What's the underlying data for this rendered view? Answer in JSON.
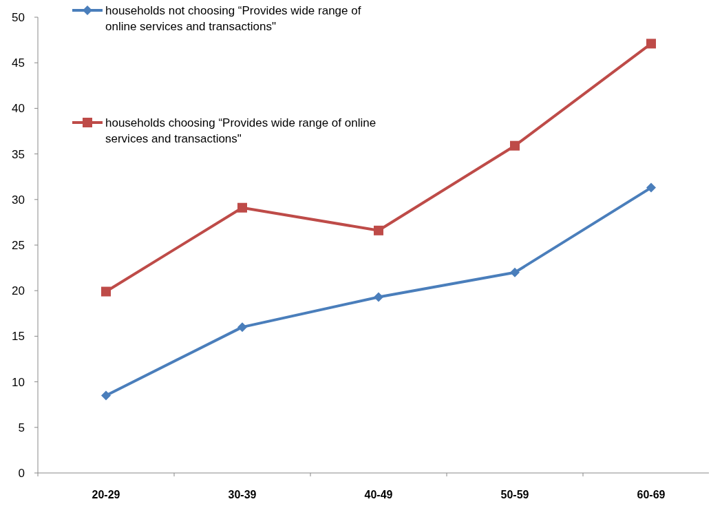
{
  "chart_data": {
    "type": "line",
    "categories": [
      "20-29",
      "30-39",
      "40-49",
      "50-59",
      "60-69"
    ],
    "series": [
      {
        "name": "households not choosing “Provides wide range of online services and transactions\"",
        "color": "#4a7ebb",
        "values": [
          8.5,
          16,
          19.3,
          22,
          31.3
        ],
        "marker": "diamond"
      },
      {
        "name": "households choosing “Provides wide range of online services and transactions\"",
        "color": "#be4b48",
        "values": [
          19.9,
          29.1,
          26.6,
          35.9,
          47.1
        ],
        "marker": "square"
      }
    ],
    "ylim": [
      0,
      50
    ],
    "yticks": [
      0,
      5,
      10,
      15,
      20,
      25,
      30,
      35,
      40,
      45,
      50
    ],
    "grid": false,
    "legend": "top left",
    "line_style": "solid"
  }
}
